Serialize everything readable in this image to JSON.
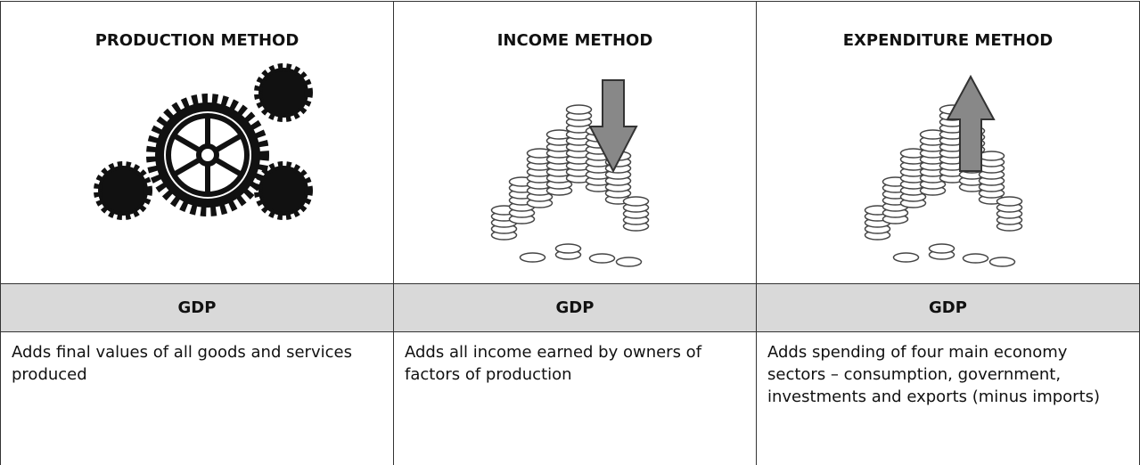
{
  "table": {
    "columns": [
      {
        "title": "PRODUCTION METHOD",
        "label": "GDP",
        "description": "Adds final values of all goods and services produced"
      },
      {
        "title": "INCOME METHOD",
        "label": "GDP",
        "description": "Adds all income earned by owners of factors of production"
      },
      {
        "title": "EXPENDITURE METHOD",
        "label": "GDP",
        "description": "Adds spending of four main economy sectors – consumption, government, investments and exports (minus imports)"
      }
    ]
  }
}
